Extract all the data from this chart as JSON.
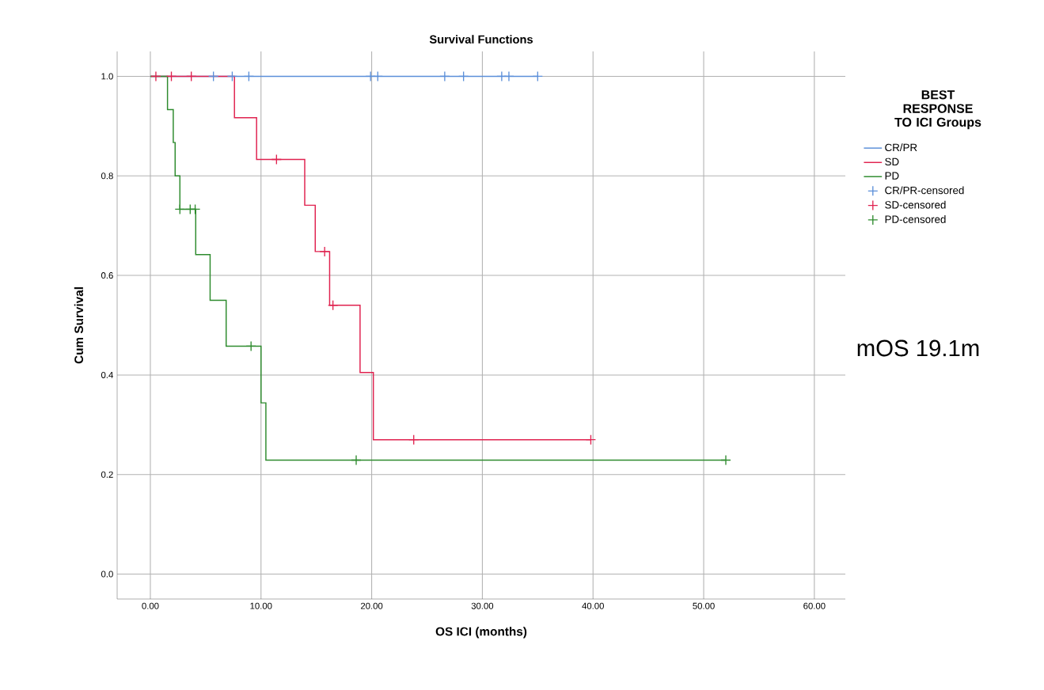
{
  "chart_data": {
    "type": "step",
    "title": "Survival Functions",
    "xlabel": "OS ICI (months)",
    "ylabel": "Cum Survival",
    "legend_title": "BEST RESPONSE TO ICI Groups",
    "legend": "right",
    "grid": true,
    "annotations": [
      "mOS 19.1m"
    ],
    "xlim": [
      -3,
      62.8
    ],
    "ylim": [
      -0.05,
      1.05
    ],
    "xticks": [
      {
        "value": 0,
        "label": "0.00"
      },
      {
        "value": 10,
        "label": "10.00"
      },
      {
        "value": 20,
        "label": "20.00"
      },
      {
        "value": 30,
        "label": "30.00"
      },
      {
        "value": 40,
        "label": "40.00"
      },
      {
        "value": 50,
        "label": "50.00"
      },
      {
        "value": 60,
        "label": "60.00"
      }
    ],
    "yticks": [
      {
        "value": 0,
        "label": "0.0"
      },
      {
        "value": 0.2,
        "label": "0.2"
      },
      {
        "value": 0.4,
        "label": "0.4"
      },
      {
        "value": 0.6,
        "label": "0.6"
      },
      {
        "value": 0.8,
        "label": "0.8"
      },
      {
        "value": 1,
        "label": "1.0"
      }
    ],
    "series": [
      {
        "name": "CR/PR",
        "color": "#5b8fd9",
        "x": [
          0,
          35.0
        ],
        "values": [
          1,
          1
        ]
      },
      {
        "name": "SD",
        "color": "#e0224f",
        "x": [
          0,
          7.6,
          9.6,
          13.95,
          14.9,
          16.2,
          18.95,
          20.15,
          39.8
        ],
        "values": [
          1,
          0.917,
          0.833,
          0.741,
          0.648,
          0.54,
          0.405,
          0.27,
          0.27
        ]
      },
      {
        "name": "PD",
        "color": "#2e8b2e",
        "x": [
          0,
          1.55,
          2.07,
          2.24,
          2.67,
          4.1,
          5.4,
          6.85,
          10.0,
          10.44,
          52.0
        ],
        "values": [
          1,
          0.933,
          0.867,
          0.8,
          0.733,
          0.642,
          0.55,
          0.458,
          0.344,
          0.229,
          0.229
        ]
      },
      {
        "name": "CR/PR-censored",
        "type": "scatter",
        "marker": "cross",
        "color": "#5b8fd9",
        "x": [
          5.7,
          7.4,
          8.9,
          19.9,
          20.55,
          26.6,
          28.3,
          31.75,
          32.4,
          35.0
        ],
        "values": [
          1,
          1,
          1,
          1,
          1,
          1,
          1,
          1,
          1,
          1
        ]
      },
      {
        "name": "SD-censored",
        "type": "scatter",
        "marker": "cross",
        "color": "#e0224f",
        "x": [
          0.5,
          1.9,
          3.7,
          11.4,
          15.75,
          16.5,
          23.8,
          39.8
        ],
        "values": [
          1,
          1,
          1,
          0.833,
          0.648,
          0.54,
          0.27,
          0.27
        ]
      },
      {
        "name": "PD-censored",
        "type": "scatter",
        "marker": "cross",
        "color": "#2e8b2e",
        "x": [
          2.67,
          3.6,
          4.05,
          9.1,
          18.6,
          52.0
        ],
        "values": [
          0.733,
          0.733,
          0.733,
          0.458,
          0.229,
          0.229
        ]
      }
    ]
  }
}
